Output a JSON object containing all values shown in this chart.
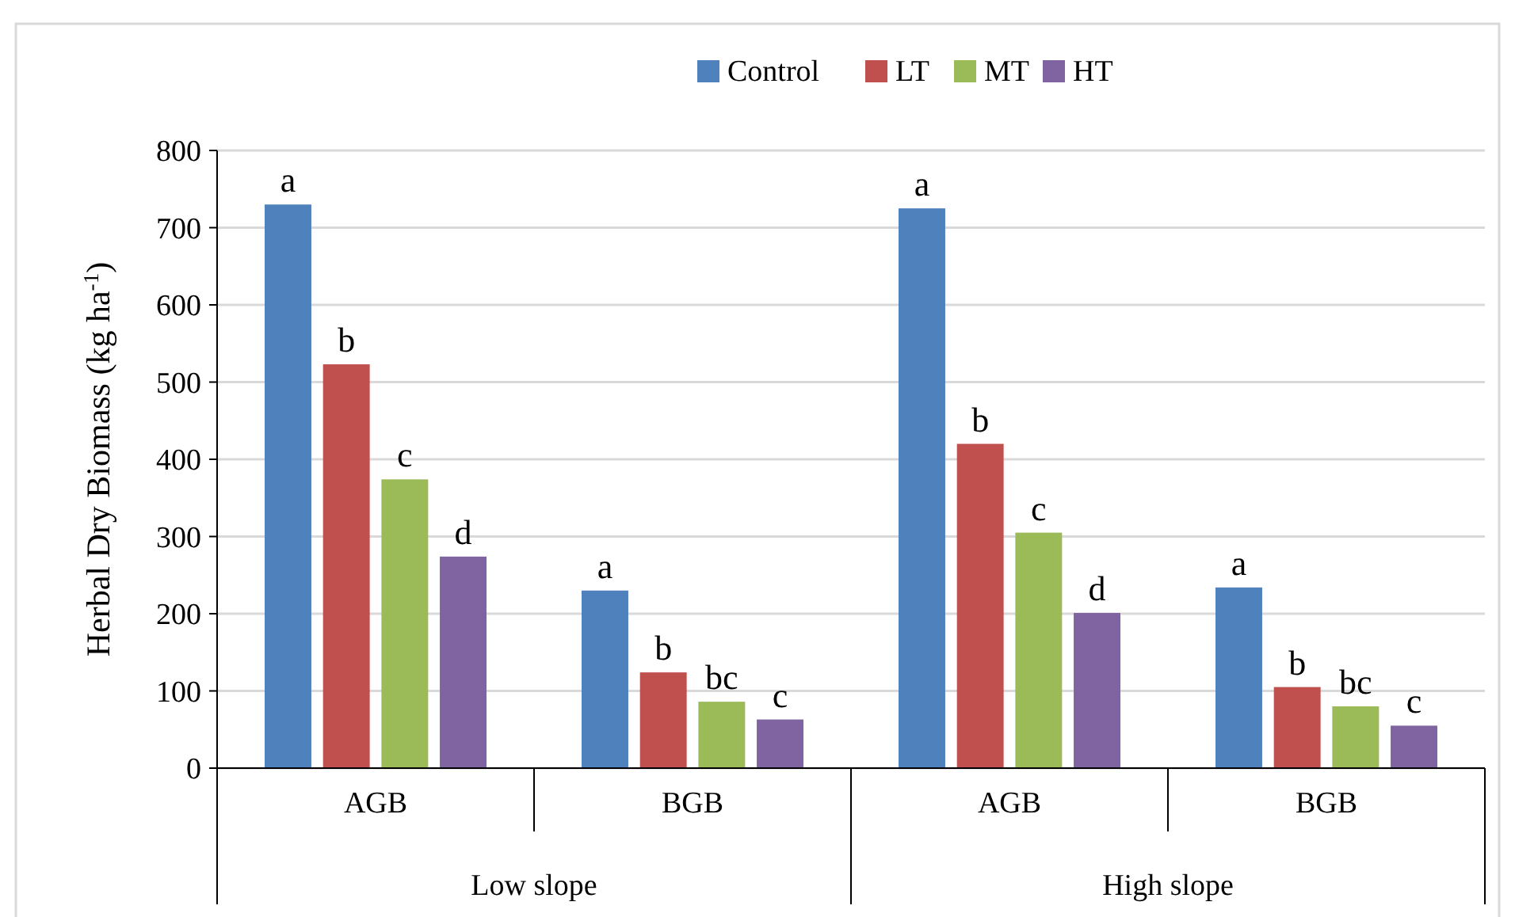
{
  "chart_data": {
    "type": "bar",
    "ylabel": "Herbal Dry Biomass (kg ha$^{-1}$)",
    "categories": [
      "AGB",
      "BGB",
      "AGB",
      "BGB"
    ],
    "series": [
      {
        "name": "Control",
        "color": "#4f81bd",
        "values": [
          730,
          230,
          725,
          234
        ],
        "value_labels": [
          "a",
          "a",
          "a",
          "a"
        ]
      },
      {
        "name": "LT",
        "color": "#c0504d",
        "values": [
          523,
          124,
          420,
          105
        ],
        "value_labels": [
          "b",
          "b",
          "b",
          "b"
        ]
      },
      {
        "name": "MT",
        "color": "#9bbb59",
        "values": [
          374,
          86,
          305,
          80
        ],
        "value_labels": [
          "c",
          "bc",
          "c",
          "bc"
        ]
      },
      {
        "name": "HT",
        "color": "#8064a2",
        "values": [
          274,
          63,
          201,
          55
        ],
        "value_labels": [
          "d",
          "c",
          "d",
          "c"
        ]
      }
    ],
    "ylim": [
      0,
      800
    ],
    "yticks": [
      0,
      100,
      200,
      300,
      400,
      500,
      600,
      700,
      800
    ],
    "grid": "y",
    "legend": "top",
    "annotations": [
      "Low slope",
      "High slope"
    ]
  }
}
